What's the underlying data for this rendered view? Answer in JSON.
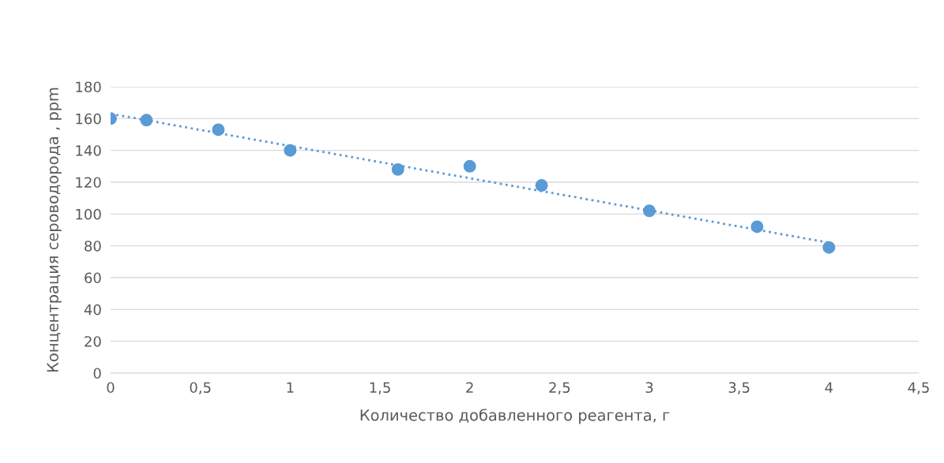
{
  "chart_data": {
    "type": "scatter",
    "xlabel": "Количество добавленного реагента, г",
    "ylabel": "Концентрация сероводорода , ppm",
    "series": [
      {
        "color": "#5b9bd5",
        "x": [
          0,
          0.2,
          0.6,
          1,
          1.6,
          2,
          2.4,
          3,
          3.6,
          4
        ],
        "values": [
          160,
          159,
          153,
          140,
          128,
          130,
          118,
          102,
          92,
          79
        ],
        "marker": "circle"
      },
      {
        "type": "line",
        "color": "#5b9bd5",
        "x": [
          0,
          4
        ],
        "values": [
          163,
          82
        ],
        "line_style": "dotted",
        "marker": "none"
      }
    ],
    "xlim": [
      0,
      4.5
    ],
    "xticks": [
      0,
      {
        "value": 0.5,
        "label": "0,5"
      },
      1,
      {
        "value": 1.5,
        "label": "1,5"
      },
      2,
      {
        "value": 2.5,
        "label": "2,5"
      },
      3,
      {
        "value": 3.5,
        "label": "3,5"
      },
      4,
      {
        "value": 4.5,
        "label": "4,5"
      }
    ],
    "ylim": [
      0,
      180
    ],
    "yticks": [
      0,
      20,
      40,
      60,
      80,
      100,
      120,
      140,
      160,
      180
    ],
    "grid": "y",
    "legend": false
  }
}
